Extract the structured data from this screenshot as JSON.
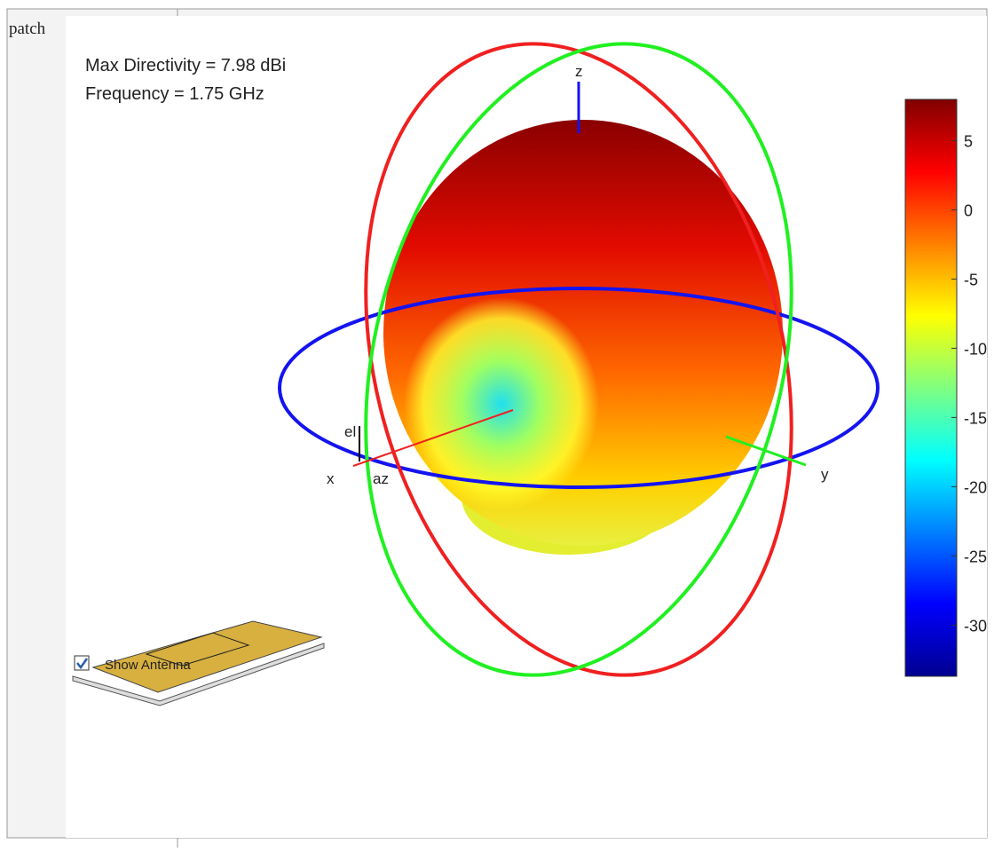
{
  "window": {
    "title": "patch"
  },
  "annotation": {
    "lines": [
      "Max Directivity = 7.98 dBi",
      "Frequency = 1.75 GHz"
    ]
  },
  "axes_labels": {
    "z": "z",
    "x": "x",
    "y": "y",
    "el": "el",
    "az": "az"
  },
  "colorbar": {
    "lim": [
      -33.7,
      7.98
    ],
    "ticks": [
      5,
      0,
      -5,
      -10,
      -15,
      -20,
      -25,
      -30
    ]
  },
  "controls": {
    "show_antenna": {
      "label": "Show Antenna",
      "checked": true
    }
  }
}
